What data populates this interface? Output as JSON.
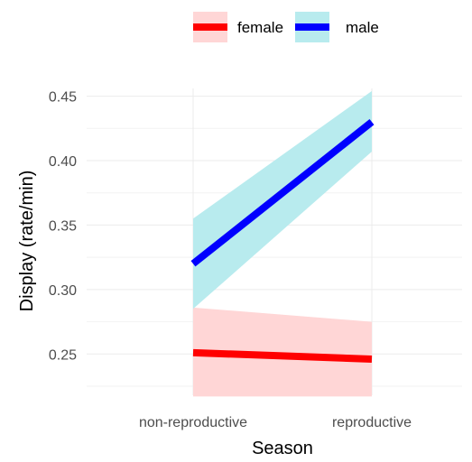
{
  "chart_data": {
    "type": "line",
    "categories": [
      "non-reproductive",
      "reproductive"
    ],
    "xlabel": "Season",
    "ylabel": "Display (rate/min)",
    "ylim": [
      0.218,
      0.456
    ],
    "yticks": [
      0.25,
      0.3,
      0.35,
      0.4,
      0.45
    ],
    "ytick_labels": [
      "0.25",
      "0.30",
      "0.35",
      "0.40",
      "0.45"
    ],
    "grid": true,
    "legend_position": "top",
    "series": [
      {
        "name": "female",
        "values": [
          0.251,
          0.246
        ],
        "ci_lower": [
          0.217,
          0.217
        ],
        "ci_upper": [
          0.286,
          0.275
        ],
        "line_color": "#ff0000",
        "band_color": "#ffd6d6"
      },
      {
        "name": "male",
        "values": [
          0.32,
          0.43
        ],
        "ci_lower": [
          0.285,
          0.407
        ],
        "ci_upper": [
          0.355,
          0.454
        ],
        "line_color": "#0000ff",
        "band_color": "#b8ebee"
      }
    ]
  }
}
